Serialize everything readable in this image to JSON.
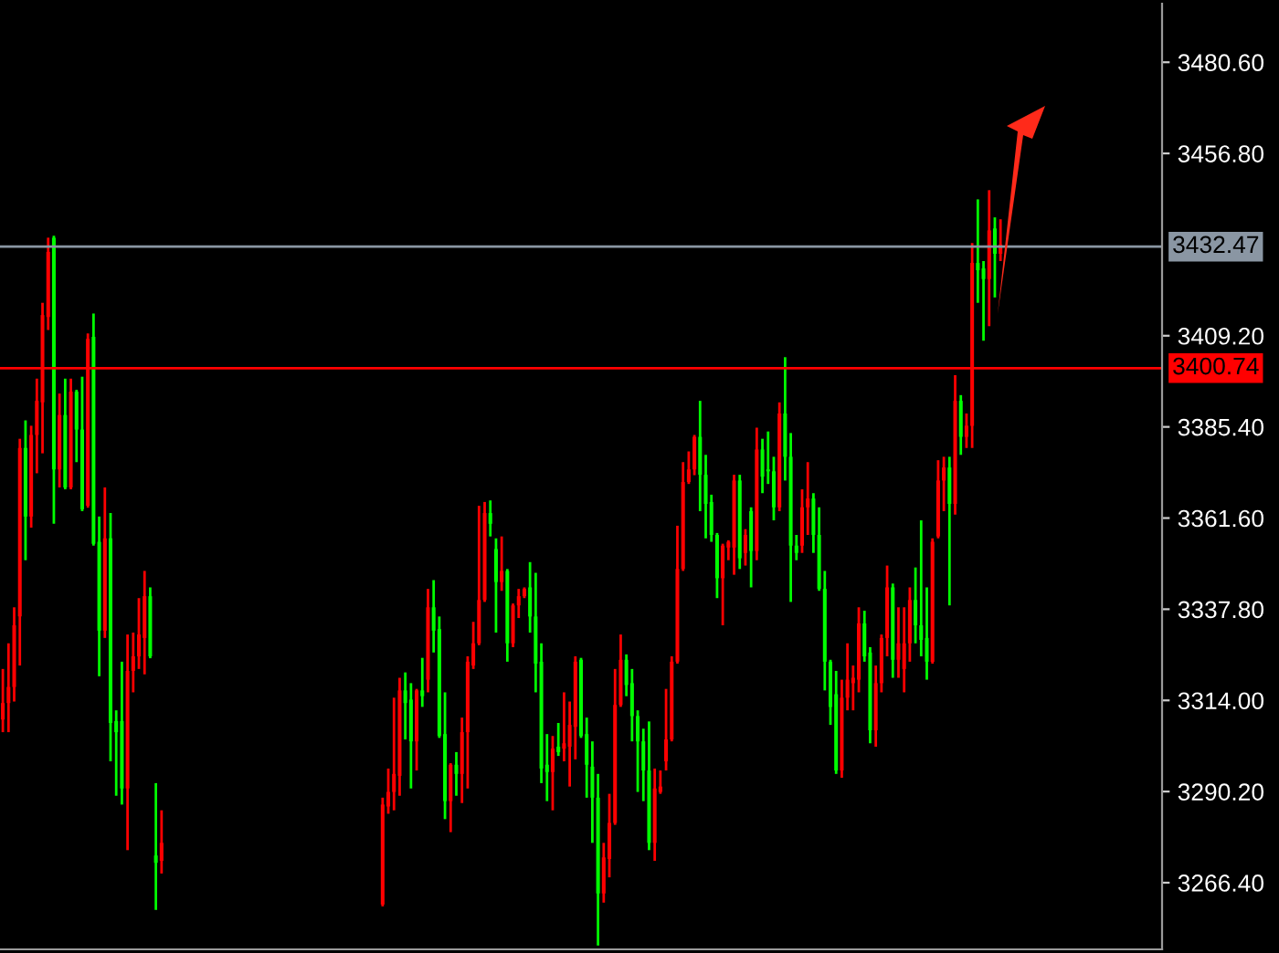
{
  "chart_data": {
    "type": "candlestick",
    "categories": [
      null,
      null,
      null,
      null,
      null,
      null,
      null,
      null,
      null,
      null,
      null,
      null,
      null,
      null,
      null,
      null,
      null,
      null,
      null,
      null,
      null,
      null,
      null,
      null,
      null,
      null,
      null,
      null,
      null,
      null,
      null,
      null,
      null,
      null,
      null,
      null,
      null,
      null,
      null,
      null,
      null,
      null,
      null,
      null,
      null,
      null,
      null,
      null,
      null,
      null,
      null,
      null,
      null,
      null,
      null,
      null,
      null,
      null,
      null,
      null,
      null,
      null,
      null,
      null,
      null,
      null,
      null,
      null,
      null,
      null,
      null,
      null,
      null,
      null,
      null,
      null,
      null,
      null,
      null,
      null,
      null,
      null,
      null,
      null,
      null,
      null,
      null,
      null,
      null,
      null,
      null,
      null,
      null,
      null,
      null,
      null,
      null,
      null,
      null,
      null,
      null,
      null,
      null,
      null,
      null,
      null,
      null,
      null,
      null,
      null,
      null,
      null,
      null,
      null,
      null,
      null,
      null,
      null,
      null,
      null,
      null,
      null,
      null,
      null,
      null,
      null,
      null,
      null,
      null,
      null,
      null,
      null,
      null,
      null,
      null,
      null,
      null,
      null,
      null,
      null,
      null,
      null,
      null,
      null,
      null,
      null,
      null,
      null,
      null,
      null,
      null,
      null,
      null,
      null,
      null,
      null,
      null,
      null,
      null,
      null,
      null,
      null,
      null,
      null,
      null,
      null,
      null,
      null,
      null,
      null,
      null,
      null,
      null,
      null,
      null,
      null,
      null,
      null,
      null,
      null,
      null,
      null,
      null,
      null,
      null,
      null,
      null,
      null,
      null,
      null,
      null,
      null,
      null,
      null,
      null,
      null,
      null,
      null,
      null,
      null,
      null,
      null,
      null,
      null,
      null
    ],
    "colors": [
      "#ff0000",
      "#ff0000",
      "#ff0000",
      "#ff0000",
      "#00ff00",
      "#ff0000",
      "#ff0000",
      "#ff0000",
      "#ff0000",
      "#00ff00",
      "#ff0000",
      "#00ff00",
      "#ff0000",
      "#00ff00",
      "#00ff00",
      "#ff0000",
      "#00ff00",
      "#00ff00",
      "#ff0000",
      "#00ff00",
      "#00ff00",
      "#00ff00",
      "#ff0000",
      "#ff0000",
      "#ff0000",
      "#ff0000",
      "#00ff00",
      "#00ff00",
      "#ff0000",
      null,
      null,
      null,
      null,
      null,
      null,
      null,
      null,
      null,
      null,
      null,
      null,
      null,
      null,
      null,
      null,
      null,
      null,
      null,
      null,
      null,
      null,
      null,
      null,
      null,
      null,
      null,
      null,
      null,
      null,
      null,
      null,
      null,
      null,
      null,
      null,
      null,
      null,
      "#ff0000",
      "#ff0000",
      "#ff0000",
      "#ff0000",
      "#00ff00",
      "#00ff00",
      "#ff0000",
      "#00ff00",
      "#ff0000",
      "#00ff00",
      "#00ff00",
      "#00ff00",
      "#ff0000",
      "#00ff00",
      "#ff0000",
      "#ff0000",
      "#ff0000",
      "#ff0000",
      "#ff0000",
      "#00ff00",
      "#00ff00",
      "#ff0000",
      "#00ff00",
      "#ff0000",
      "#ff0000",
      "#ff0000",
      "#00ff00",
      "#00ff00",
      "#00ff00",
      "#00ff00",
      "#ff0000",
      "#00ff00",
      "#ff0000",
      "#ff0000",
      "#ff0000",
      "#00ff00",
      "#00ff00",
      "#00ff00",
      "#00ff00",
      "#ff0000",
      "#ff0000",
      "#ff0000",
      "#ff0000",
      "#00ff00",
      "#00ff00",
      "#00ff00",
      "#00ff00",
      "#00ff00",
      "#ff0000",
      "#ff0000",
      "#ff0000",
      "#ff0000",
      "#ff0000",
      "#ff0000",
      "#ff0000",
      "#ff0000",
      "#00ff00",
      "#00ff00",
      "#00ff00",
      "#00ff00",
      "#ff0000",
      "#ff0000",
      "#ff0000",
      "#00ff00",
      "#ff0000",
      "#00ff00",
      "#ff0000",
      "#00ff00",
      "#00ff00",
      "#00ff00",
      "#ff0000",
      "#00ff00",
      "#00ff00",
      "#00ff00",
      "#ff0000",
      "#ff0000",
      "#00ff00",
      "#00ff00",
      "#00ff00",
      "#00ff00",
      "#00ff00",
      "#ff0000",
      "#ff0000",
      "#ff0000",
      "#ff0000",
      "#00ff00",
      "#00ff00",
      "#ff0000",
      "#ff0000",
      "#ff0000",
      "#00ff00",
      "#ff0000",
      "#ff0000",
      "#ff0000",
      "#00ff00",
      "#00ff00",
      "#00ff00",
      "#ff0000",
      "#ff0000",
      "#ff0000",
      "#00ff00",
      "#ff0000",
      "#00ff00",
      "#ff0000",
      "#ff0000",
      "#00ff00",
      "#00ff00",
      "#ff0000",
      "#00ff00",
      "#ff0000",
      null,
      null,
      null,
      null,
      null,
      null,
      null,
      null,
      null,
      null,
      null,
      null,
      null,
      null,
      null,
      null,
      null,
      null,
      null,
      null,
      null,
      null,
      null,
      null,
      null,
      null,
      null,
      null
    ],
    "ohlc": [
      [
        3309.0,
        3322.2,
        3305.7,
        3313.3
      ],
      [
        3313.3,
        3328.9,
        3305.7,
        3317.5
      ],
      [
        3317.5,
        3338.3,
        3313.7,
        3333.6
      ],
      [
        3335.9,
        3382.3,
        3323.1,
        3379.9
      ],
      [
        3379.9,
        3387.1,
        3350.6,
        3362.0
      ],
      [
        3362.0,
        3385.7,
        3359.1,
        3383.3
      ],
      [
        3383.3,
        3398.0,
        3373.3,
        3392.2
      ],
      [
        3391.8,
        3417.8,
        3378.5,
        3414.6
      ],
      [
        3414.1,
        3434.8,
        3410.7,
        3431.1
      ],
      [
        3434.8,
        3435.3,
        3360.1,
        3374.3
      ],
      [
        3374.3,
        3394.1,
        3369.6,
        3388.5
      ],
      [
        3388.5,
        3398.0,
        3369.1,
        3369.6
      ],
      [
        3369.6,
        3398.0,
        3369.1,
        3394.6
      ],
      [
        3394.6,
        3395.1,
        3376.2,
        3384.7
      ],
      [
        3384.7,
        3398.5,
        3363.4,
        3363.9
      ],
      [
        3364.8,
        3409.8,
        3364.3,
        3408.4
      ],
      [
        3408.9,
        3415.0,
        3354.4,
        3354.9
      ],
      [
        3355.4,
        3362.0,
        3320.3,
        3332.2
      ],
      [
        3332.2,
        3369.6,
        3330.3,
        3356.3
      ],
      [
        3356.3,
        3362.9,
        3298.1,
        3308.1
      ],
      [
        3308.6,
        3311.4,
        3289.1,
        3305.7
      ],
      [
        3308.6,
        3324.1,
        3286.8,
        3291.0
      ],
      [
        3291.0,
        3331.2,
        3274.9,
        3321.7
      ],
      [
        3321.7,
        3331.7,
        3316.1,
        3325.5
      ],
      [
        3325.5,
        3340.7,
        3322.2,
        3331.2
      ],
      [
        3330.3,
        3347.8,
        3320.8,
        3341.2
      ],
      [
        3341.2,
        3343.5,
        3325.0,
        3325.5
      ],
      [
        3273.5,
        3292.4,
        3259.3,
        3271.6
      ],
      [
        3272.1,
        3285.3,
        3268.8,
        3276.8
      ],
      null,
      null,
      null,
      null,
      null,
      null,
      null,
      null,
      null,
      null,
      null,
      null,
      null,
      null,
      null,
      null,
      null,
      null,
      null,
      null,
      null,
      null,
      null,
      null,
      null,
      null,
      null,
      null,
      null,
      null,
      null,
      null,
      null,
      null,
      null,
      null,
      null,
      null,
      [
        3260.7,
        3288.6,
        3260.2,
        3286.8
      ],
      [
        3286.3,
        3296.2,
        3284.4,
        3290.1
      ],
      [
        3290.1,
        3314.7,
        3285.3,
        3294.8
      ],
      [
        3294.3,
        3319.9,
        3289.1,
        3316.6
      ],
      [
        3316.6,
        3321.3,
        3303.8,
        3313.3
      ],
      [
        3314.2,
        3318.5,
        3291.0,
        3303.3
      ],
      [
        3303.3,
        3317.0,
        3295.7,
        3316.6
      ],
      [
        3316.6,
        3325.1,
        3312.3,
        3315.1
      ],
      [
        3319.4,
        3343.1,
        3316.1,
        3338.3
      ],
      [
        3338.3,
        3345.4,
        3326.5,
        3332.2
      ],
      [
        3332.6,
        3335.9,
        3304.2,
        3304.7
      ],
      [
        3305.2,
        3316.1,
        3283.0,
        3287.7
      ],
      [
        3287.7,
        3297.6,
        3279.6,
        3297.2
      ],
      [
        3297.2,
        3300.5,
        3289.1,
        3294.8
      ],
      [
        3294.8,
        3309.5,
        3287.2,
        3305.7
      ],
      [
        3305.7,
        3325.5,
        3291.0,
        3324.1
      ],
      [
        3323.1,
        3334.5,
        3322.2,
        3328.9
      ],
      [
        3328.9,
        3364.8,
        3328.4,
        3340.2
      ],
      [
        3340.2,
        3365.8,
        3339.7,
        3362.9
      ],
      [
        3362.9,
        3366.2,
        3356.8,
        3360.1
      ],
      [
        3353.5,
        3356.3,
        3331.7,
        3344.9
      ],
      [
        3344.9,
        3356.8,
        3342.6,
        3347.8
      ],
      [
        3347.8,
        3348.3,
        3324.1,
        3328.9
      ],
      [
        3328.9,
        3339.3,
        3327.9,
        3338.8
      ],
      [
        3338.8,
        3343.1,
        3335.5,
        3341.2
      ],
      [
        3341.2,
        3343.5,
        3340.7,
        3343.1
      ],
      [
        3343.5,
        3350.1,
        3331.7,
        3335.9
      ],
      [
        3335.9,
        3347.3,
        3316.1,
        3323.6
      ],
      [
        3324.1,
        3328.9,
        3292.4,
        3296.2
      ],
      [
        3297.2,
        3305.2,
        3287.7,
        3295.3
      ],
      [
        3295.3,
        3304.7,
        3285.3,
        3301.4
      ],
      [
        3301.9,
        3308.1,
        3299.5,
        3300.5
      ],
      [
        3301.4,
        3316.1,
        3298.1,
        3302.8
      ],
      [
        3301.9,
        3313.7,
        3291.5,
        3307.6
      ],
      [
        3307.1,
        3325.5,
        3298.6,
        3324.1
      ],
      [
        3324.6,
        3325.1,
        3304.2,
        3304.7
      ],
      [
        3305.2,
        3309.5,
        3288.6,
        3297.2
      ],
      [
        3296.7,
        3303.3,
        3276.8,
        3288.6
      ],
      [
        3288.6,
        3294.8,
        3250.0,
        3263.6
      ],
      [
        3263.6,
        3276.8,
        3261.2,
        3273.0
      ],
      [
        3272.6,
        3289.6,
        3267.8,
        3282.0
      ],
      [
        3282.0,
        3322.2,
        3281.5,
        3312.8
      ],
      [
        3312.8,
        3331.2,
        3312.3,
        3324.6
      ],
      [
        3324.6,
        3326.0,
        3315.1,
        3318.0
      ],
      [
        3318.5,
        3322.2,
        3303.3,
        3309.9
      ],
      [
        3309.9,
        3311.4,
        3290.1,
        3303.3
      ],
      [
        3303.3,
        3306.6,
        3287.7,
        3295.7
      ],
      [
        3295.7,
        3308.5,
        3274.9,
        3276.8
      ],
      [
        3276.8,
        3296.2,
        3272.1,
        3291.0
      ],
      [
        3290.1,
        3295.7,
        3289.6,
        3291.5
      ],
      [
        3298.1,
        3317.0,
        3295.7,
        3303.8
      ],
      [
        3303.8,
        3325.5,
        3303.3,
        3324.1
      ],
      [
        3324.1,
        3359.6,
        3323.6,
        3348.3
      ],
      [
        3348.3,
        3376.2,
        3347.8,
        3371.0
      ],
      [
        3371.0,
        3379.0,
        3370.5,
        3374.3
      ],
      [
        3374.3,
        3383.3,
        3372.8,
        3382.8
      ],
      [
        3382.8,
        3392.2,
        3363.4,
        3372.9
      ],
      [
        3372.9,
        3378.1,
        3356.3,
        3365.3
      ],
      [
        3365.8,
        3367.7,
        3355.4,
        3357.2
      ],
      [
        3357.2,
        3357.7,
        3340.7,
        3345.9
      ],
      [
        3345.9,
        3354.9,
        3333.6,
        3354.4
      ],
      [
        3353.9,
        3355.8,
        3350.6,
        3355.4
      ],
      [
        3353.9,
        3372.9,
        3346.8,
        3371.4
      ],
      [
        3371.4,
        3372.9,
        3348.3,
        3351.1
      ],
      [
        3352.5,
        3358.7,
        3349.2,
        3357.2
      ],
      [
        3363.4,
        3364.4,
        3343.5,
        3353.0
      ],
      [
        3353.0,
        3385.2,
        3350.6,
        3379.5
      ],
      [
        3379.5,
        3382.3,
        3368.1,
        3372.4
      ],
      [
        3374.3,
        3384.2,
        3370.5,
        3373.8
      ],
      [
        3373.8,
        3377.6,
        3361.0,
        3364.4
      ],
      [
        3364.4,
        3391.8,
        3363.4,
        3388.9
      ],
      [
        3388.9,
        3403.6,
        3371.4,
        3377.6
      ],
      [
        3377.6,
        3383.8,
        3339.7,
        3354.4
      ],
      [
        3354.4,
        3357.2,
        3350.6,
        3352.5
      ],
      [
        3354.4,
        3369.1,
        3352.5,
        3364.4
      ],
      [
        3364.4,
        3376.2,
        3357.2,
        3366.7
      ],
      [
        3366.7,
        3368.1,
        3352.5,
        3357.2
      ],
      [
        3357.2,
        3364.4,
        3342.6,
        3343.1
      ],
      [
        3343.1,
        3347.8,
        3316.6,
        3324.1
      ],
      [
        3324.1,
        3324.6,
        3307.6,
        3312.3
      ],
      [
        3315.6,
        3321.7,
        3294.8,
        3295.7
      ],
      [
        3295.7,
        3319.4,
        3293.8,
        3314.7
      ],
      [
        3314.7,
        3328.9,
        3311.4,
        3319.4
      ],
      [
        3318.5,
        3323.1,
        3311.4,
        3319.9
      ],
      [
        3319.4,
        3338.3,
        3316.1,
        3334.1
      ],
      [
        3334.1,
        3337.4,
        3324.1,
        3325.5
      ],
      [
        3326.5,
        3327.9,
        3302.8,
        3306.2
      ],
      [
        3306.2,
        3323.1,
        3301.9,
        3318.5
      ],
      [
        3318.5,
        3331.2,
        3316.1,
        3330.3
      ],
      [
        3330.3,
        3349.2,
        3325.5,
        3343.5
      ],
      [
        3343.5,
        3344.5,
        3319.9,
        3324.6
      ],
      [
        3324.6,
        3338.3,
        3319.9,
        3328.9
      ],
      [
        3322.2,
        3338.3,
        3316.1,
        3328.9
      ],
      [
        3328.9,
        3343.5,
        3324.1,
        3340.2
      ],
      [
        3340.2,
        3348.7,
        3328.9,
        3333.6
      ],
      [
        3333.6,
        3361.0,
        3325.5,
        3329.8
      ],
      [
        3330.3,
        3343.5,
        3319.4,
        3324.1
      ],
      [
        3324.1,
        3356.3,
        3323.6,
        3355.4
      ],
      [
        3356.8,
        3376.7,
        3356.3,
        3371.4
      ],
      [
        3371.4,
        3377.6,
        3363.4,
        3374.8
      ],
      [
        3374.8,
        3377.6,
        3338.8,
        3365.3
      ],
      [
        3365.3,
        3398.9,
        3362.5,
        3392.2
      ],
      [
        3392.2,
        3393.7,
        3378.1,
        3382.8
      ],
      [
        3382.8,
        3388.9,
        3379.9,
        3385.7
      ],
      [
        3385.7,
        3433.4,
        3379.9,
        3428.2
      ],
      [
        3428.2,
        3444.8,
        3417.8,
        3426.3
      ],
      [
        3426.8,
        3428.7,
        3407.9,
        3424.0
      ],
      [
        3424.0,
        3447.2,
        3411.7,
        3436.7
      ],
      [
        3437.2,
        3440.1,
        3419.2,
        3430.6
      ],
      [
        3430.6,
        3439.6,
        3428.7,
        3433.0
      ],
      null,
      null,
      null,
      null,
      null,
      null,
      null,
      null,
      null,
      null,
      null,
      null,
      null,
      null,
      null,
      null,
      null,
      null,
      null,
      null,
      null,
      null,
      null,
      null,
      null,
      null,
      null,
      null
    ],
    "ylim": [
      3249.0,
      3495.9
    ],
    "yticks": [
      {
        "value": 3266.4,
        "label": "3266.40"
      },
      {
        "value": 3290.2,
        "label": "3290.20"
      },
      {
        "value": 3314.0,
        "label": "3314.00"
      },
      {
        "value": 3337.8,
        "label": "3337.80"
      },
      {
        "value": 3361.6,
        "label": "3361.60"
      },
      {
        "value": 3385.4,
        "label": "3385.40"
      },
      {
        "value": 3409.2,
        "label": "3409.20"
      },
      {
        "value": 3456.8,
        "label": "3456.80"
      },
      {
        "value": 3480.6,
        "label": "3480.60"
      }
    ],
    "ref_lines": [
      {
        "axis": "y",
        "value": 3432.47,
        "label": "3432.47",
        "color": "#8a96a3"
      },
      {
        "axis": "y",
        "value": 3400.74,
        "label": "3400.74",
        "color": "#ff0000"
      }
    ],
    "tick_labels": "y"
  }
}
